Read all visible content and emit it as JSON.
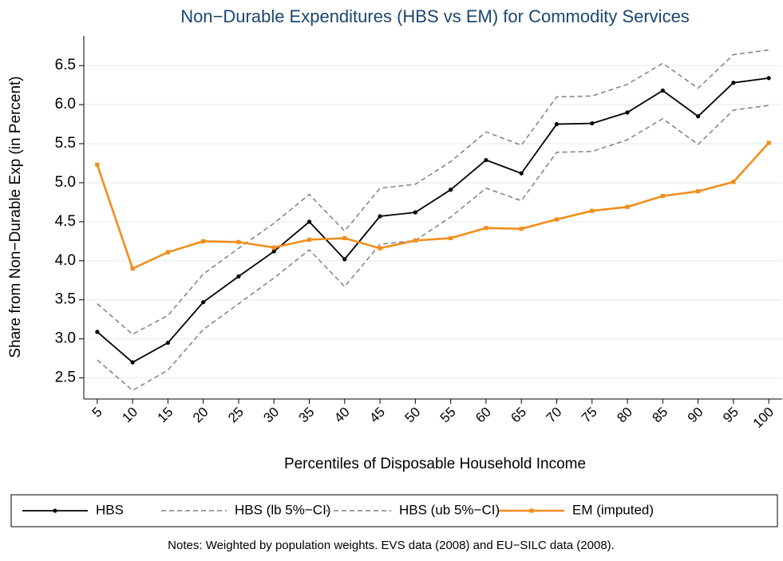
{
  "chart_data": {
    "type": "line",
    "title": "Non−Durable Expenditures (HBS vs EM) for Commodity Services",
    "x_label": "Percentiles of Disposable Household Income",
    "y_label": "Share from Non−Durable Exp (in Percent)",
    "note": "Notes: Weighted by population weights. EVS data (2008) and EU−SILC data (2008).",
    "x": [
      5,
      10,
      15,
      20,
      25,
      30,
      35,
      40,
      45,
      50,
      55,
      60,
      65,
      70,
      75,
      80,
      85,
      90,
      95,
      100
    ],
    "xlim": [
      3.1,
      101.9
    ],
    "xticks": [
      5,
      10,
      15,
      20,
      25,
      30,
      35,
      40,
      45,
      50,
      55,
      60,
      65,
      70,
      75,
      80,
      85,
      90,
      95,
      100
    ],
    "ylim": [
      2.23,
      6.88
    ],
    "yticks": [
      2.5,
      {
        "value": 3,
        "label": "3.0"
      },
      3.5,
      {
        "value": 4,
        "label": "4.0"
      },
      4.5,
      {
        "value": 5,
        "label": "5.0"
      },
      5.5,
      {
        "value": 6,
        "label": "6.0"
      },
      6.5
    ],
    "grid": true,
    "series": [
      {
        "name": "HBS",
        "color": "#000000",
        "dash": false,
        "marker": "circle",
        "values": [
          3.09,
          2.7,
          2.95,
          3.47,
          3.8,
          4.12,
          4.5,
          4.02,
          4.57,
          4.62,
          4.91,
          5.29,
          5.12,
          5.75,
          5.76,
          5.9,
          6.18,
          5.85,
          6.28,
          6.34
        ]
      },
      {
        "name": "HBS (lb 5%−CI)",
        "color": "#808080",
        "dash": true,
        "marker": "none",
        "values": [
          2.73,
          2.34,
          2.6,
          3.12,
          3.45,
          3.78,
          4.14,
          3.67,
          4.21,
          4.26,
          4.56,
          4.93,
          4.77,
          5.39,
          5.4,
          5.55,
          5.82,
          5.49,
          5.93,
          5.99
        ]
      },
      {
        "name": "HBS (ub 5%−CI)",
        "color": "#808080",
        "dash": true,
        "marker": "none",
        "values": [
          3.45,
          3.06,
          3.3,
          3.83,
          4.16,
          4.48,
          4.85,
          4.38,
          4.93,
          4.98,
          5.27,
          5.65,
          5.48,
          6.1,
          6.11,
          6.26,
          6.53,
          6.21,
          6.64,
          6.7
        ]
      },
      {
        "name": "EM (imputed)",
        "color": "#f28e1c",
        "dash": false,
        "marker": "square",
        "values": [
          5.23,
          3.9,
          4.11,
          4.25,
          4.24,
          4.17,
          4.27,
          4.29,
          4.16,
          4.26,
          4.29,
          4.42,
          4.41,
          4.53,
          4.64,
          4.69,
          4.83,
          4.89,
          5.01,
          5.51
        ]
      }
    ]
  }
}
